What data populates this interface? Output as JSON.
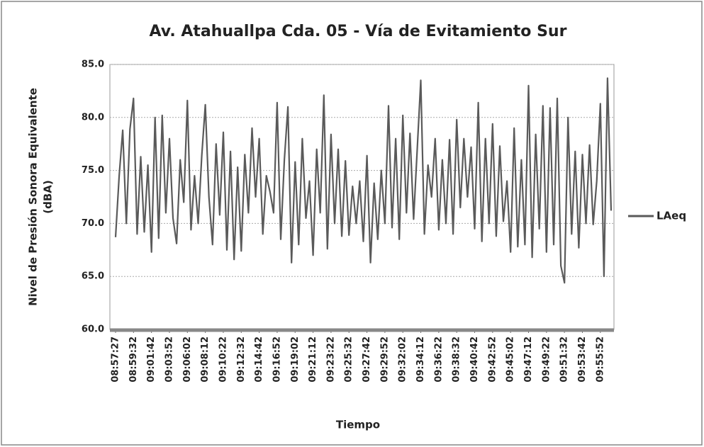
{
  "chart_data": {
    "type": "line",
    "title": "Av. Atahuallpa Cda. 05 - Vía de Evitamiento Sur",
    "ylabel": [
      "Nivel de Presión Sonora Equivalente",
      "(dBA)"
    ],
    "xlabel": "Tiempo",
    "categories": [
      "08:57:27",
      null,
      null,
      null,
      null,
      "08:59:32",
      null,
      null,
      null,
      null,
      "09:01:42",
      null,
      null,
      null,
      null,
      "09:03:52",
      null,
      null,
      null,
      null,
      "09:06:02",
      null,
      null,
      null,
      null,
      "09:08:12",
      null,
      null,
      null,
      null,
      "09:10:22",
      null,
      null,
      null,
      null,
      "09:12:32",
      null,
      null,
      null,
      null,
      "09:14:42",
      null,
      null,
      null,
      null,
      "09:16:52",
      null,
      null,
      null,
      null,
      "09:19:02",
      null,
      null,
      null,
      null,
      "09:21:12",
      null,
      null,
      null,
      null,
      "09:23:22",
      null,
      null,
      null,
      null,
      "09:25:32",
      null,
      null,
      null,
      null,
      "09:27:42",
      null,
      null,
      null,
      null,
      "09:29:52",
      null,
      null,
      null,
      null,
      "09:32:02",
      null,
      null,
      null,
      null,
      "09:34:12",
      null,
      null,
      null,
      null,
      "09:36:22",
      null,
      null,
      null,
      null,
      "09:38:32",
      null,
      null,
      null,
      null,
      "09:40:42",
      null,
      null,
      null,
      null,
      "09:42:52",
      null,
      null,
      null,
      null,
      "09:45:02",
      null,
      null,
      null,
      null,
      "09:47:12",
      null,
      null,
      null,
      null,
      "09:49:22",
      null,
      null,
      null,
      null,
      "09:51:32",
      null,
      null,
      null,
      null,
      "09:53:42",
      null,
      null,
      null,
      null,
      "09:55:52",
      null,
      null,
      null
    ],
    "series": [
      {
        "name": "LAeq",
        "color": "#5a5a5a",
        "values": [
          68.7,
          74.5,
          78.8,
          70.0,
          78.9,
          81.8,
          69.0,
          76.3,
          69.2,
          75.5,
          67.3,
          80.0,
          68.6,
          80.2,
          71.0,
          78.0,
          70.5,
          68.1,
          76.0,
          72.0,
          81.6,
          69.4,
          74.5,
          70.0,
          76.4,
          81.2,
          72.5,
          68.0,
          77.5,
          70.8,
          78.6,
          67.5,
          76.8,
          66.6,
          75.3,
          67.4,
          76.5,
          71.0,
          79.0,
          72.5,
          78.0,
          69.0,
          74.5,
          73.0,
          71.0,
          81.4,
          68.5,
          76.0,
          81.0,
          66.3,
          75.8,
          68.0,
          78.0,
          70.5,
          74.0,
          67.0,
          77.0,
          71.0,
          82.1,
          67.6,
          78.4,
          70.0,
          77.0,
          68.8,
          75.9,
          68.9,
          73.5,
          70.0,
          74.0,
          68.3,
          76.4,
          66.3,
          73.8,
          68.5,
          75.0,
          70.0,
          81.1,
          69.6,
          78.0,
          68.5,
          80.2,
          71.0,
          78.5,
          70.4,
          77.0,
          83.5,
          69.0,
          75.5,
          72.5,
          78.0,
          69.4,
          76.0,
          70.0,
          77.9,
          69.0,
          79.8,
          71.5,
          78.0,
          72.5,
          77.2,
          69.5,
          81.4,
          68.3,
          78.0,
          70.0,
          79.4,
          68.8,
          77.3,
          70.2,
          74.0,
          67.3,
          79.0,
          67.8,
          76.0,
          68.0,
          83.0,
          66.8,
          78.4,
          69.5,
          81.1,
          67.3,
          80.9,
          68.0,
          81.8,
          66.0,
          64.4,
          80.0,
          69.0,
          76.8,
          67.7,
          76.5,
          70.0,
          77.4,
          69.9,
          74.0,
          81.3,
          65.0,
          83.7,
          71.2
        ]
      }
    ],
    "ylim": [
      60,
      85
    ],
    "yticks": [
      {
        "value": 60,
        "label": "60.0"
      },
      {
        "value": 65,
        "label": "65.0"
      },
      {
        "value": 70,
        "label": "70.0"
      },
      {
        "value": 75,
        "label": "75.0"
      },
      {
        "value": 80,
        "label": "80.0"
      },
      {
        "value": 85,
        "label": "85.0"
      }
    ],
    "grid": true,
    "legend": "right"
  }
}
